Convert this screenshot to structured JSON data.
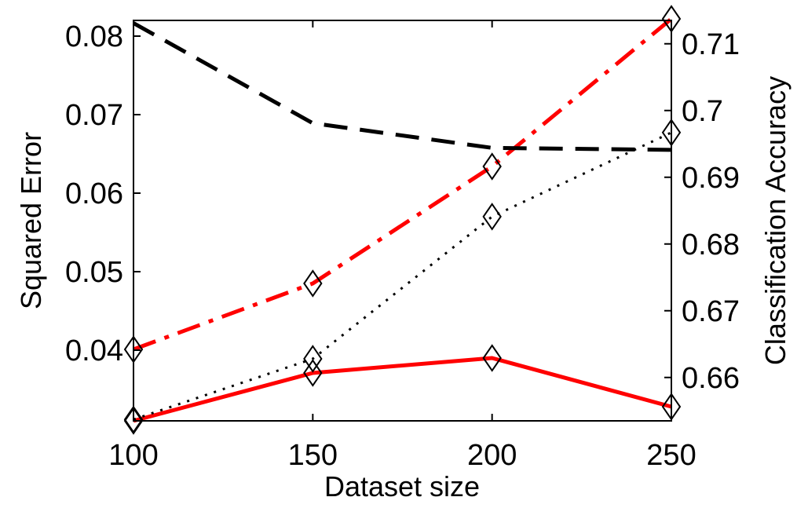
{
  "chart_data": {
    "type": "line",
    "xlabel": "Dataset size",
    "ylabel_left": "Squared Error",
    "ylabel_right": "Classification Accuracy",
    "x": [
      100,
      150,
      200,
      250
    ],
    "xlim": [
      100,
      250
    ],
    "xticks": [
      "100",
      "150",
      "200",
      "250"
    ],
    "ylim_left": [
      0.031,
      0.082
    ],
    "yticks_left": [
      "0.04",
      "0.05",
      "0.06",
      "0.07",
      "0.08"
    ],
    "ylim_right": [
      0.6535,
      0.7135
    ],
    "yticks_right": [
      "0.66",
      "0.67",
      "0.68",
      "0.69",
      "0.7",
      "0.71"
    ],
    "grid": false,
    "series": [
      {
        "axis": "left",
        "style": "solid",
        "color": "#ff0000",
        "marker": "diamond",
        "values": [
          0.031,
          0.0371,
          0.039,
          0.0328
        ]
      },
      {
        "axis": "left",
        "style": "dashdot",
        "color": "#ff0000",
        "marker": "diamond",
        "values": [
          0.0401,
          0.0485,
          0.0634,
          0.0822
        ]
      },
      {
        "axis": "right",
        "style": "dashed",
        "color": "#000000",
        "marker": "none",
        "values": [
          0.7131,
          0.6981,
          0.6944,
          0.6941
        ]
      },
      {
        "axis": "right",
        "style": "dotted",
        "color": "#000000",
        "marker": "diamond",
        "values": [
          0.6537,
          0.6628,
          0.6841,
          0.6967
        ]
      }
    ]
  }
}
